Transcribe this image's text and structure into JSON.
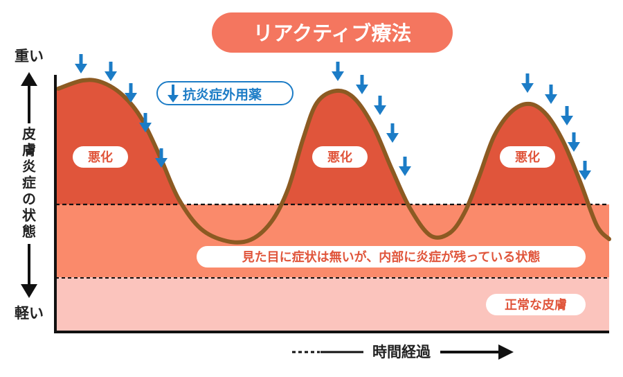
{
  "title": "リアクティブ療法",
  "legend_label": "抗炎症外用薬",
  "y_axis": {
    "top_label": "重い",
    "bottom_label": "軽い",
    "middle_label_chars": [
      "皮",
      "膚",
      "炎",
      "症",
      "の",
      "状",
      "態"
    ]
  },
  "x_axis": {
    "label": "時間経過"
  },
  "bands": {
    "middle_label": "見た目に症状は無いが、内部に炎症が残っている状態",
    "bottom_label": "正常な皮膚"
  },
  "peak_label": "悪化",
  "colors": {
    "title_bg": "#f4765f",
    "top_region": "#e0553b",
    "middle_band": "#fa8a6b",
    "bottom_band": "#fbc4bd",
    "curve": "#8c5a22",
    "arrow": "#1c7cc6",
    "text_accent": "#e0553b"
  },
  "icons": {
    "arrow": "down-arrow-icon"
  }
}
